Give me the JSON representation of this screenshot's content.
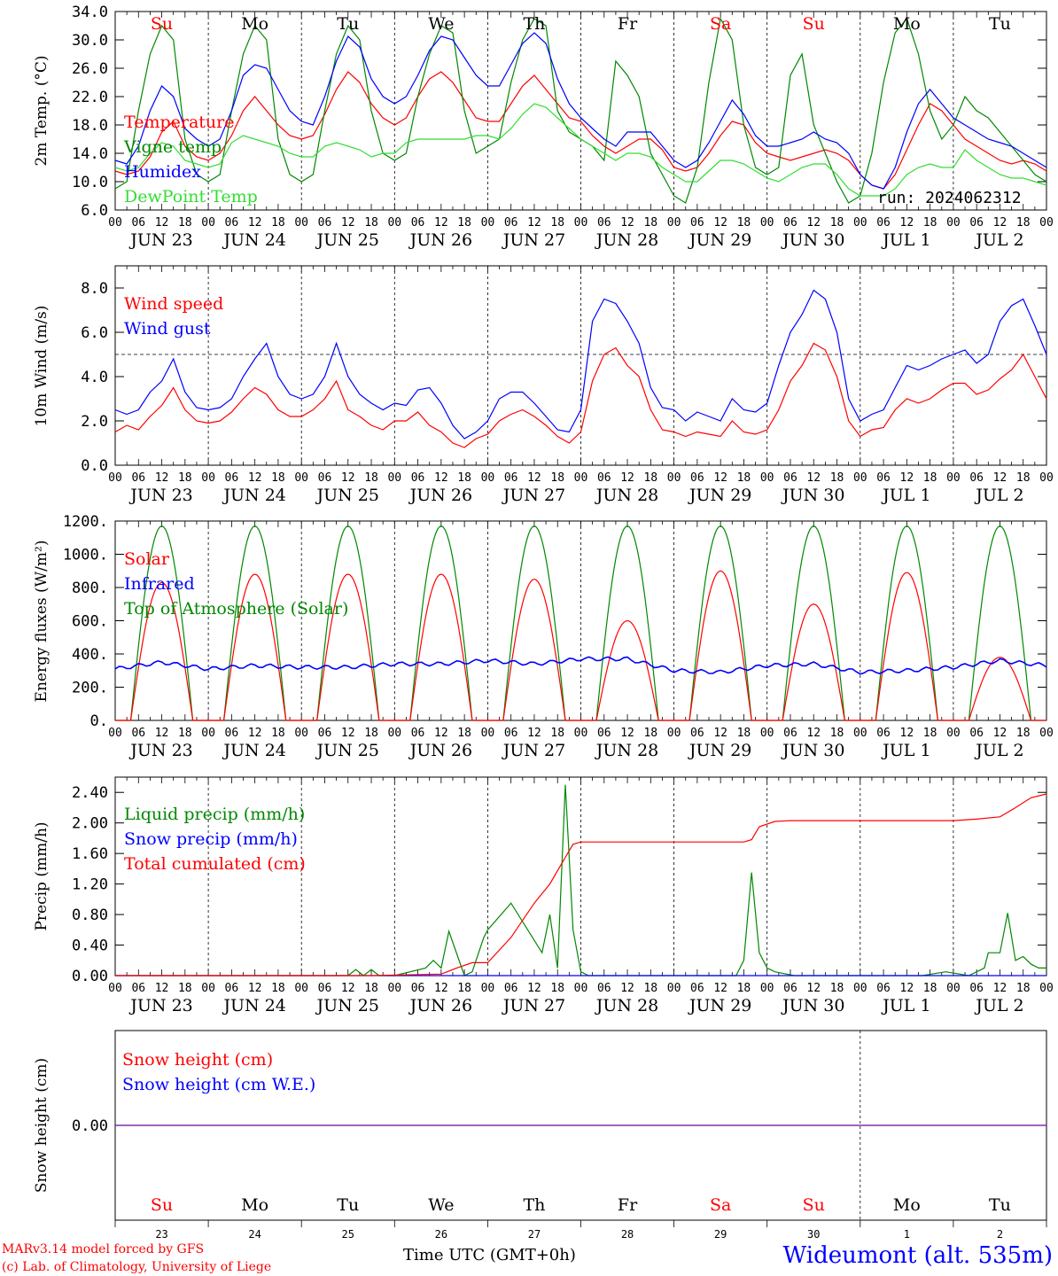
{
  "chart_data": [
    {
      "type": "line",
      "title": "",
      "ylabel": "2m Temp. (°C)",
      "ylim": [
        6.0,
        34.0
      ],
      "yticks": [
        "6.0",
        "10.0",
        "14.0",
        "18.0",
        "22.0",
        "26.0",
        "30.0",
        "34.0"
      ],
      "annotation": "run: 2024062312",
      "x_hours": [
        0,
        3,
        6,
        9,
        12,
        15,
        18,
        21,
        24,
        27,
        30,
        33,
        36,
        39,
        42,
        45,
        48,
        51,
        54,
        57,
        60,
        63,
        66,
        69,
        72,
        75,
        78,
        81,
        84,
        87,
        90,
        93,
        96,
        99,
        102,
        105,
        108,
        111,
        114,
        117,
        120,
        123,
        126,
        129,
        132,
        135,
        138,
        141,
        144,
        147,
        150,
        153,
        156,
        159,
        162,
        165,
        168,
        171,
        174,
        177,
        180,
        183,
        186,
        189,
        192,
        195,
        198,
        201,
        204,
        207,
        210,
        213,
        216,
        219,
        222,
        225,
        228,
        231,
        234,
        237,
        240
      ],
      "series": [
        {
          "name": "Temperature",
          "color": "#ff0000",
          "values": [
            11.5,
            11,
            11.5,
            13.5,
            17,
            18.5,
            15,
            13.5,
            13,
            14,
            16.5,
            20,
            22,
            20,
            18,
            16.5,
            16,
            16.5,
            19.5,
            23,
            25.5,
            24,
            21,
            19,
            18,
            19,
            22,
            24.5,
            25.5,
            24,
            21.5,
            19,
            18.5,
            18.5,
            21,
            23.5,
            25,
            23,
            21,
            19,
            18.5,
            16.5,
            15,
            14,
            15,
            16,
            16,
            14.5,
            12,
            11.5,
            12,
            14,
            16.5,
            18.5,
            18,
            15.5,
            14,
            13.5,
            13,
            13.5,
            14,
            14.5,
            14,
            13,
            11,
            9.5,
            9,
            11,
            14.5,
            18,
            21,
            20,
            18,
            16,
            15,
            14,
            13,
            12.5,
            13,
            12.5,
            11.5
          ]
        },
        {
          "name": "Vigne temp",
          "color": "#008800",
          "values": [
            9,
            10,
            20,
            28,
            32,
            30,
            16,
            11,
            10,
            11,
            20,
            28,
            32,
            30,
            16,
            11,
            10,
            11,
            20,
            28,
            32,
            30,
            20,
            14,
            13,
            14,
            22,
            28,
            32,
            31,
            20,
            14,
            15,
            16,
            24,
            30,
            33,
            32,
            20,
            17,
            16,
            15,
            13,
            27,
            25,
            22,
            14,
            11,
            8,
            7,
            12,
            24,
            33,
            30,
            18,
            12,
            11,
            12,
            25,
            28,
            18,
            14,
            10,
            7,
            8,
            14,
            24,
            31,
            33,
            28,
            20,
            16,
            18,
            22,
            20,
            19,
            17,
            15,
            13,
            11,
            10
          ]
        },
        {
          "name": "Humidex",
          "color": "#0000ff",
          "values": [
            13,
            12.5,
            15,
            20,
            23.5,
            22,
            17.5,
            16,
            15,
            16,
            20,
            25,
            26.5,
            26,
            23,
            20,
            18.5,
            18,
            22,
            27,
            30.5,
            29,
            24.5,
            22,
            21,
            22,
            25,
            28.5,
            30.5,
            30,
            27.5,
            25,
            23.5,
            23.5,
            26.5,
            29.5,
            31,
            29.5,
            24.5,
            21,
            19,
            17.5,
            16,
            15,
            17,
            17,
            17,
            15,
            13,
            12,
            13,
            15.5,
            18.5,
            21.5,
            19.5,
            16.5,
            15,
            15,
            15.5,
            16,
            17,
            16,
            15.5,
            14,
            11,
            9.5,
            9,
            12,
            17,
            21,
            23,
            21,
            19,
            18,
            17,
            16,
            15.5,
            15,
            14,
            13,
            12
          ]
        },
        {
          "name": "DewPoint Temp",
          "color": "#33dd33",
          "values": [
            12,
            11.5,
            12,
            14,
            15.5,
            15,
            13,
            12.5,
            12,
            12.5,
            15.5,
            16.5,
            16,
            15.5,
            15,
            14,
            13.5,
            13.5,
            15,
            15.5,
            15,
            14.5,
            13.5,
            14,
            14,
            15.5,
            16,
            16,
            16,
            16,
            16,
            16.5,
            16.5,
            16,
            17.5,
            19.5,
            21,
            20.5,
            19,
            17.5,
            16,
            15,
            14,
            13,
            14,
            14,
            13.5,
            12,
            11,
            10,
            10,
            11.5,
            13,
            13,
            12.5,
            11.5,
            10.5,
            10,
            11,
            12,
            12.5,
            12.5,
            11,
            9,
            8,
            8,
            8,
            9,
            11,
            12,
            12.5,
            12,
            12,
            14.5,
            13,
            12,
            11,
            10.5,
            10.5,
            10,
            9.5
          ]
        }
      ]
    },
    {
      "type": "line",
      "title": "",
      "ylabel": "10m Wind (m/s)",
      "ylim": [
        0,
        9
      ],
      "yticks": [
        "0.0",
        "2.0",
        "4.0",
        "6.0",
        "8.0"
      ],
      "reference_line": 5.0,
      "x_hours": [
        0,
        3,
        6,
        9,
        12,
        15,
        18,
        21,
        24,
        27,
        30,
        33,
        36,
        39,
        42,
        45,
        48,
        51,
        54,
        57,
        60,
        63,
        66,
        69,
        72,
        75,
        78,
        81,
        84,
        87,
        90,
        93,
        96,
        99,
        102,
        105,
        108,
        111,
        114,
        117,
        120,
        123,
        126,
        129,
        132,
        135,
        138,
        141,
        144,
        147,
        150,
        153,
        156,
        159,
        162,
        165,
        168,
        171,
        174,
        177,
        180,
        183,
        186,
        189,
        192,
        195,
        198,
        201,
        204,
        207,
        210,
        213,
        216,
        219,
        222,
        225,
        228,
        231,
        234,
        237,
        240
      ],
      "series": [
        {
          "name": "Wind speed",
          "color": "#ff0000",
          "values": [
            1.5,
            1.8,
            1.6,
            2.2,
            2.7,
            3.5,
            2.5,
            2,
            1.9,
            2,
            2.4,
            3,
            3.5,
            3.2,
            2.5,
            2.2,
            2.2,
            2.5,
            3,
            3.8,
            2.5,
            2.2,
            1.8,
            1.6,
            2,
            2,
            2.4,
            1.8,
            1.5,
            1,
            0.8,
            1.2,
            1.4,
            2,
            2.3,
            2.5,
            2.2,
            1.8,
            1.3,
            1,
            1.5,
            3.8,
            5,
            5.3,
            4.5,
            4,
            2.5,
            1.6,
            1.5,
            1.3,
            1.5,
            1.4,
            1.3,
            2,
            1.5,
            1.4,
            1.6,
            2.5,
            3.8,
            4.5,
            5.5,
            5.2,
            4,
            2,
            1.3,
            1.6,
            1.7,
            2.5,
            3,
            2.8,
            3,
            3.4,
            3.7,
            3.7,
            3.2,
            3.4,
            3.9,
            4.3,
            5,
            4,
            3
          ]
        },
        {
          "name": "Wind gust",
          "color": "#0000ff",
          "values": [
            2.5,
            2.3,
            2.5,
            3.3,
            3.8,
            4.8,
            3.3,
            2.6,
            2.5,
            2.6,
            3,
            4,
            4.8,
            5.5,
            4,
            3.2,
            3,
            3.2,
            4,
            5.5,
            4,
            3.2,
            2.8,
            2.5,
            2.8,
            2.7,
            3.4,
            3.5,
            2.8,
            1.8,
            1.2,
            1.5,
            2,
            3,
            3.3,
            3.3,
            2.8,
            2.2,
            1.6,
            1.5,
            2.5,
            6.5,
            7.5,
            7.3,
            6.5,
            5.5,
            3.5,
            2.6,
            2.5,
            2,
            2.4,
            2.2,
            2,
            3,
            2.5,
            2.4,
            2.8,
            4.5,
            6,
            6.8,
            7.9,
            7.5,
            6,
            3,
            2,
            2.3,
            2.5,
            3.5,
            4.5,
            4.3,
            4.5,
            4.8,
            5,
            5.2,
            4.6,
            5,
            6.5,
            7.2,
            7.5,
            6.3,
            5
          ]
        }
      ]
    },
    {
      "type": "line",
      "title": "",
      "ylabel": "Energy fluxes (W/m²)",
      "ylim": [
        0,
        1200
      ],
      "yticks": [
        "0.",
        "200.",
        "400.",
        "600.",
        "800.",
        "1000.",
        "1200."
      ],
      "series": [
        {
          "name": "Solar",
          "color": "#ff0000",
          "daily_peaks": [
            830,
            880,
            880,
            880,
            850,
            600,
            900,
            700,
            890,
            380
          ]
        },
        {
          "name": "Infrared",
          "color": "#0000ff",
          "x_hours": [
            0,
            12,
            24,
            36,
            48,
            60,
            72,
            84,
            96,
            108,
            120,
            132,
            144,
            156,
            168,
            180,
            192,
            204,
            216,
            228,
            240
          ],
          "values": [
            310,
            350,
            310,
            330,
            320,
            320,
            340,
            340,
            360,
            340,
            370,
            370,
            300,
            290,
            330,
            340,
            290,
            300,
            320,
            360,
            330
          ]
        },
        {
          "name": "Top of Atmosphere (Solar)",
          "color": "#008800",
          "daily_peak": 1170
        }
      ]
    },
    {
      "type": "line",
      "title": "",
      "ylabel": "Precip (mm/h)",
      "ylim": [
        0,
        2.6
      ],
      "yticks": [
        "0.00",
        "0.40",
        "0.80",
        "1.20",
        "1.60",
        "2.00",
        "2.40"
      ],
      "series": [
        {
          "name": "Liquid precip (mm/h)",
          "color": "#008800",
          "x_hours": [
            0,
            60,
            62,
            64,
            66,
            68,
            70,
            72,
            80,
            82,
            84,
            86,
            90,
            92,
            95,
            96,
            102,
            110,
            112,
            114,
            116,
            118,
            120,
            122,
            124,
            126,
            128,
            130,
            132,
            136,
            160,
            162,
            164,
            166,
            168,
            170,
            175,
            180,
            208,
            214,
            220,
            224,
            225,
            228,
            230,
            232,
            234,
            236,
            238,
            240
          ],
          "values": [
            0,
            0,
            0.08,
            0,
            0.08,
            0,
            0,
            0,
            0.1,
            0.2,
            0.1,
            0.58,
            0,
            0.05,
            0.5,
            0.6,
            0.95,
            0.3,
            0.8,
            0.1,
            2.5,
            0.6,
            0.05,
            0,
            0,
            0,
            0,
            0,
            0,
            0,
            0,
            0.2,
            1.35,
            0.3,
            0.1,
            0.05,
            0,
            0,
            0,
            0.05,
            0,
            0.1,
            0.3,
            0.3,
            0.82,
            0.2,
            0.25,
            0.15,
            0.1,
            0.1
          ]
        },
        {
          "name": "Snow precip (mm/h)",
          "color": "#0000ff",
          "x_hours": [
            0,
            240
          ],
          "values": [
            0,
            0
          ]
        },
        {
          "name": "Total cumulated (cm)",
          "color": "#ff0000",
          "x_hours": [
            0,
            66,
            84,
            88,
            92,
            96,
            102,
            108,
            112,
            116,
            118,
            120,
            162,
            164,
            166,
            170,
            174,
            216,
            222,
            228,
            232,
            236,
            240
          ],
          "values": [
            0,
            0,
            0.02,
            0.1,
            0.17,
            0.17,
            0.5,
            0.95,
            1.2,
            1.55,
            1.72,
            1.75,
            1.75,
            1.78,
            1.95,
            2.02,
            2.03,
            2.03,
            2.05,
            2.08,
            2.2,
            2.33,
            2.38
          ]
        }
      ]
    },
    {
      "type": "line",
      "title": "",
      "ylabel": "Snow height (cm)",
      "yticks": [
        "0.00"
      ],
      "series": [
        {
          "name": "Snow height (cm)",
          "color": "#ff0000",
          "x_hours": [
            0,
            240
          ],
          "values": [
            0,
            0
          ]
        },
        {
          "name": "Snow height (cm W.E.)",
          "color": "#0000ff",
          "x_hours": [
            0,
            240
          ],
          "values": [
            0,
            0
          ]
        }
      ]
    }
  ],
  "x_axis": {
    "hour_ticks": [
      "00",
      "06",
      "12",
      "18"
    ],
    "end_tick": "00",
    "date_labels": [
      "JUN 23",
      "JUN 24",
      "JUN 25",
      "JUN 26",
      "JUN 27",
      "JUN 28",
      "JUN 29",
      "JUN 30",
      "JUL  1",
      "JUL  2"
    ],
    "weekdays": [
      {
        "label": "Su",
        "color": "#ff0000"
      },
      {
        "label": "Mo",
        "color": "#000000"
      },
      {
        "label": "Tu",
        "color": "#000000"
      },
      {
        "label": "We",
        "color": "#000000"
      },
      {
        "label": "Th",
        "color": "#000000"
      },
      {
        "label": "Fr",
        "color": "#000000"
      },
      {
        "label": "Sa",
        "color": "#ff0000"
      },
      {
        "label": "Su",
        "color": "#ff0000"
      },
      {
        "label": "Mo",
        "color": "#000000"
      },
      {
        "label": "Tu",
        "color": "#000000"
      }
    ],
    "day_numbers": [
      "23",
      "24",
      "25",
      "26",
      "27",
      "28",
      "29",
      "30",
      "1",
      "2"
    ]
  },
  "footer": {
    "model_line1": "MARv3.14 model forced by GFS",
    "model_line2": "(c) Lab. of Climatology, University of Liege",
    "axis_title": "Time UTC (GMT+0h)",
    "station": "Wideumont (alt. 535m)"
  }
}
